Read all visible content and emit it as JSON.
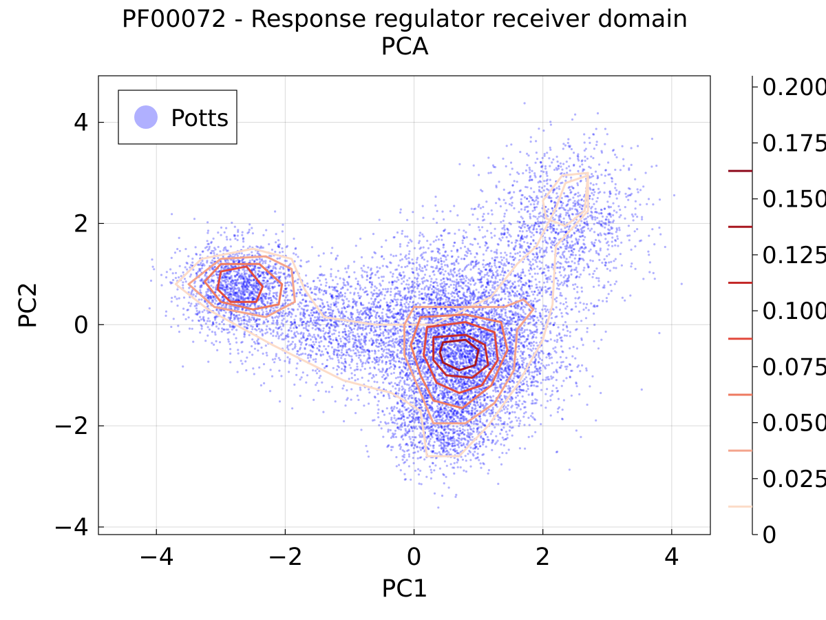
{
  "chart_data": {
    "type": "scatter",
    "title": "PF00072 - Response regulator receiver domain",
    "subtitle": "PCA",
    "xlabel": "PC1",
    "ylabel": "PC2",
    "xlim": [
      -4.9,
      4.6
    ],
    "ylim": [
      -4.15,
      4.92
    ],
    "xticks": [
      -4,
      -2,
      0,
      2,
      4
    ],
    "yticks": [
      -4,
      -2,
      0,
      2,
      4
    ],
    "xtick_labels": [
      "−4",
      "−2",
      "0",
      "2",
      "4"
    ],
    "ytick_labels": [
      "−4",
      "−2",
      "0",
      "2",
      "4"
    ],
    "grid": true,
    "legend": {
      "placement": "top-left",
      "entries": [
        {
          "name": "Potts",
          "color": "#b0b0ff"
        }
      ]
    },
    "scatter_series": {
      "name": "Potts",
      "color": "#0000ff",
      "clusters": [
        {
          "center": [
            0.75,
            -0.6
          ],
          "spread": [
            0.65,
            0.75
          ],
          "count": 4200
        },
        {
          "center": [
            -2.7,
            0.75
          ],
          "spread": [
            0.45,
            0.45
          ],
          "count": 1600
        },
        {
          "center": [
            -1.1,
            0.0
          ],
          "spread": [
            0.75,
            0.55
          ],
          "count": 1500
        },
        {
          "center": [
            0.4,
            -2.0
          ],
          "spread": [
            0.4,
            0.45
          ],
          "count": 900
        },
        {
          "center": [
            2.4,
            2.1
          ],
          "spread": [
            0.55,
            0.75
          ],
          "count": 1100
        },
        {
          "center": [
            1.6,
            0.6
          ],
          "spread": [
            0.6,
            0.9
          ],
          "count": 800
        },
        {
          "center": [
            0.4,
            0.8
          ],
          "spread": [
            0.55,
            0.6
          ],
          "count": 500
        }
      ]
    },
    "contours": [
      {
        "level": 0.025,
        "color": "#fcdcc8",
        "rings": [
          [
            [
              -2.5,
              1.5
            ],
            [
              -1.9,
              1.3
            ],
            [
              -1.7,
              0.7
            ],
            [
              -1.4,
              0.15
            ],
            [
              -0.6,
              0.0
            ],
            [
              0.3,
              0.0
            ],
            [
              1.2,
              0.55
            ],
            [
              1.6,
              1.2
            ],
            [
              1.9,
              1.55
            ],
            [
              2.2,
              2.3
            ],
            [
              2.35,
              2.8
            ],
            [
              2.7,
              2.95
            ],
            [
              2.7,
              2.25
            ],
            [
              2.2,
              1.55
            ],
            [
              2.15,
              0.4
            ],
            [
              2.0,
              -0.3
            ],
            [
              1.6,
              -1.2
            ],
            [
              1.15,
              -2.0
            ],
            [
              0.7,
              -2.6
            ],
            [
              0.2,
              -2.6
            ],
            [
              0.1,
              -1.7
            ],
            [
              -0.35,
              -1.35
            ],
            [
              -1.1,
              -1.1
            ],
            [
              -2.2,
              -0.4
            ],
            [
              -3.2,
              0.3
            ],
            [
              -3.7,
              0.8
            ],
            [
              -3.3,
              1.3
            ]
          ],
          [
            [
              2.0,
              2.45
            ],
            [
              2.3,
              2.95
            ],
            [
              2.7,
              3.0
            ],
            [
              2.65,
              2.25
            ],
            [
              2.35,
              1.95
            ],
            [
              2.05,
              2.1
            ]
          ]
        ]
      },
      {
        "level": 0.05,
        "color": "#f4a48c",
        "rings": [
          [
            [
              -3.0,
              1.3
            ],
            [
              -2.3,
              1.35
            ],
            [
              -1.9,
              1.1
            ],
            [
              -1.85,
              0.45
            ],
            [
              -2.3,
              0.15
            ],
            [
              -3.1,
              0.35
            ],
            [
              -3.5,
              0.8
            ]
          ],
          [
            [
              0.0,
              0.35
            ],
            [
              0.7,
              0.35
            ],
            [
              1.4,
              0.35
            ],
            [
              1.7,
              0.5
            ],
            [
              1.85,
              0.3
            ],
            [
              1.6,
              -0.1
            ],
            [
              1.55,
              -0.9
            ],
            [
              1.25,
              -1.55
            ],
            [
              0.8,
              -1.95
            ],
            [
              0.3,
              -1.95
            ],
            [
              0.1,
              -1.35
            ],
            [
              -0.15,
              -0.6
            ],
            [
              -0.15,
              0.0
            ]
          ]
        ]
      },
      {
        "level": 0.075,
        "color": "#ee7a60",
        "rings": [
          [
            [
              -3.0,
              1.2
            ],
            [
              -2.4,
              1.2
            ],
            [
              -2.05,
              0.8
            ],
            [
              -2.1,
              0.4
            ],
            [
              -2.5,
              0.3
            ],
            [
              -3.0,
              0.45
            ],
            [
              -3.25,
              0.85
            ]
          ],
          [
            [
              0.1,
              0.15
            ],
            [
              0.8,
              0.2
            ],
            [
              1.35,
              0.05
            ],
            [
              1.45,
              -0.5
            ],
            [
              1.2,
              -1.2
            ],
            [
              0.75,
              -1.65
            ],
            [
              0.3,
              -1.5
            ],
            [
              0.1,
              -1.0
            ],
            [
              -0.05,
              -0.4
            ]
          ]
        ]
      },
      {
        "level": 0.1,
        "color": "#e2493c",
        "rings": [
          [
            [
              -3.0,
              1.05
            ],
            [
              -2.6,
              1.15
            ],
            [
              -2.35,
              0.75
            ],
            [
              -2.45,
              0.45
            ],
            [
              -2.85,
              0.45
            ],
            [
              -3.05,
              0.7
            ]
          ],
          [
            [
              0.2,
              -0.05
            ],
            [
              0.8,
              0.05
            ],
            [
              1.25,
              -0.15
            ],
            [
              1.3,
              -0.7
            ],
            [
              1.05,
              -1.2
            ],
            [
              0.7,
              -1.35
            ],
            [
              0.35,
              -1.15
            ],
            [
              0.15,
              -0.6
            ]
          ]
        ]
      },
      {
        "level": 0.125,
        "color": "#c42a29",
        "rings": [
          [
            [
              0.3,
              -0.25
            ],
            [
              0.8,
              -0.2
            ],
            [
              1.1,
              -0.4
            ],
            [
              1.15,
              -0.8
            ],
            [
              0.9,
              -1.05
            ],
            [
              0.5,
              -1.0
            ],
            [
              0.3,
              -0.7
            ]
          ]
        ]
      },
      {
        "level": 0.15,
        "color": "#a8161e",
        "rings": [
          [
            [
              0.45,
              -0.35
            ],
            [
              0.8,
              -0.3
            ],
            [
              1.0,
              -0.5
            ],
            [
              0.95,
              -0.8
            ],
            [
              0.7,
              -0.9
            ],
            [
              0.45,
              -0.75
            ],
            [
              0.4,
              -0.55
            ]
          ]
        ]
      }
    ],
    "colorbar": {
      "range": [
        0,
        0.205
      ],
      "ticks": [
        0,
        0.025,
        0.05,
        0.075,
        0.1,
        0.125,
        0.15,
        0.175,
        0.2
      ],
      "tick_labels": [
        "0",
        "0.025",
        "0.050",
        "0.075",
        "0.100",
        "0.125",
        "0.150",
        "0.175",
        "0.200"
      ],
      "levels": [
        {
          "value": 0.0125,
          "color": "#fcdcc8"
        },
        {
          "value": 0.0375,
          "color": "#f4a48c"
        },
        {
          "value": 0.0625,
          "color": "#ee7a60"
        },
        {
          "value": 0.0875,
          "color": "#e2493c"
        },
        {
          "value": 0.1125,
          "color": "#c42a29"
        },
        {
          "value": 0.1375,
          "color": "#a8161e"
        },
        {
          "value": 0.1625,
          "color": "#8e0a1c"
        }
      ]
    }
  }
}
